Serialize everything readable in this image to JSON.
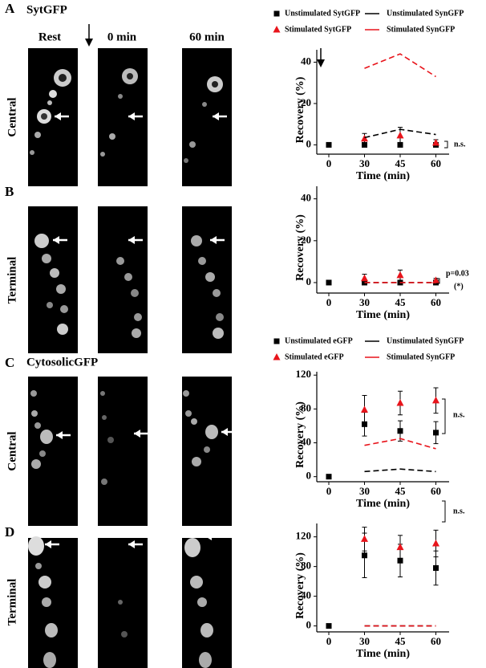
{
  "panels": [
    {
      "letter": "A",
      "label": "SytGFP",
      "columns": [
        "Rest",
        "0 min",
        "60 min"
      ],
      "row_label": "Central"
    },
    {
      "letter": "B",
      "row_label": "Terminal"
    },
    {
      "letter": "C",
      "label": "CytosolicGFP",
      "row_label": "Central"
    },
    {
      "letter": "D",
      "row_label": "Terminal"
    }
  ],
  "chart_data": [
    {
      "type": "line",
      "xlabel": "Time (min)",
      "ylabel": "Recovery (%)",
      "categories": [
        "0",
        "30",
        "45",
        "60"
      ],
      "ylim": [
        -4.5,
        46
      ],
      "yticks": [
        0,
        20,
        40
      ],
      "annotations": [
        "n.s."
      ],
      "series": [
        {
          "name": "Unstimulated SytGFP",
          "color": "#000000",
          "marker": "square",
          "values": [
            0,
            0,
            0,
            0
          ]
        },
        {
          "name": "Stimulated SytGFP",
          "color": "#e8141b",
          "marker": "triangle",
          "values": [
            null,
            3,
            4.5,
            1
          ],
          "errors": [
            null,
            2.5,
            4,
            1.5
          ]
        },
        {
          "name": "Unstimulated SynGFP",
          "color": "#000000",
          "linestyle": "dashed",
          "values": [
            null,
            3.5,
            7.5,
            5
          ]
        },
        {
          "name": "Stimulated SynGFP",
          "color": "#e8141b",
          "linestyle": "dashed",
          "values": [
            null,
            37,
            44,
            33
          ]
        }
      ]
    },
    {
      "type": "line",
      "xlabel": "Time (min)",
      "ylabel": "Recovery (%)",
      "categories": [
        "0",
        "30",
        "45",
        "60"
      ],
      "ylim": [
        -5,
        46
      ],
      "yticks": [
        0,
        20,
        40
      ],
      "annotations": [
        "p=0.03",
        "(*)"
      ],
      "series": [
        {
          "color": "#000000",
          "marker": "square",
          "values": [
            0,
            0,
            0,
            0
          ]
        },
        {
          "color": "#e8141b",
          "marker": "triangle",
          "values": [
            null,
            2,
            3.5,
            1
          ],
          "errors": [
            null,
            2,
            2.5,
            1
          ]
        },
        {
          "color": "#000000",
          "linestyle": "dashed",
          "values": [
            null,
            0,
            0,
            0
          ]
        },
        {
          "color": "#e8141b",
          "linestyle": "dashed",
          "values": [
            null,
            0,
            0,
            0
          ]
        }
      ]
    },
    {
      "type": "line",
      "xlabel": "Time (min)",
      "ylabel": "Recovery (%)",
      "categories": [
        "0",
        "30",
        "45",
        "60"
      ],
      "ylim": [
        -6,
        124
      ],
      "yticks": [
        0,
        40,
        80,
        120
      ],
      "annotations": [
        "n.s."
      ],
      "series": [
        {
          "name": "Unstimulated eGFP",
          "color": "#000000",
          "marker": "square",
          "values": [
            0,
            62,
            54,
            52
          ],
          "errors": [
            null,
            14,
            12,
            13
          ]
        },
        {
          "name": "Stimulated eGFP",
          "color": "#e8141b",
          "marker": "triangle",
          "values": [
            null,
            79,
            87,
            90
          ],
          "errors": [
            null,
            17,
            14,
            15
          ]
        },
        {
          "name": "Unstimulated SynGFP",
          "color": "#000000",
          "linestyle": "dashed",
          "values": [
            null,
            6,
            9,
            6
          ]
        },
        {
          "name": "Stimulated SynGFP",
          "color": "#e8141b",
          "linestyle": "dashed",
          "values": [
            null,
            37,
            45,
            33
          ]
        }
      ]
    },
    {
      "type": "line",
      "xlabel": "Time (min)",
      "ylabel": "Recovery (%)",
      "categories": [
        "0",
        "30",
        "45",
        "60"
      ],
      "ylim": [
        -8,
        138
      ],
      "yticks": [
        0,
        40,
        80,
        120
      ],
      "annotations": [
        "n.s."
      ],
      "series": [
        {
          "color": "#000000",
          "marker": "square",
          "values": [
            0,
            95,
            88,
            78
          ],
          "errors": [
            null,
            30,
            22,
            23
          ]
        },
        {
          "color": "#e8141b",
          "marker": "triangle",
          "values": [
            null,
            117,
            106,
            111
          ],
          "errors": [
            null,
            16,
            16,
            18
          ]
        },
        {
          "color": "#000000",
          "linestyle": "dashed",
          "values": [
            null,
            0,
            0,
            0
          ]
        },
        {
          "color": "#e8141b",
          "linestyle": "dashed",
          "values": [
            null,
            0,
            0,
            0
          ]
        }
      ]
    }
  ]
}
